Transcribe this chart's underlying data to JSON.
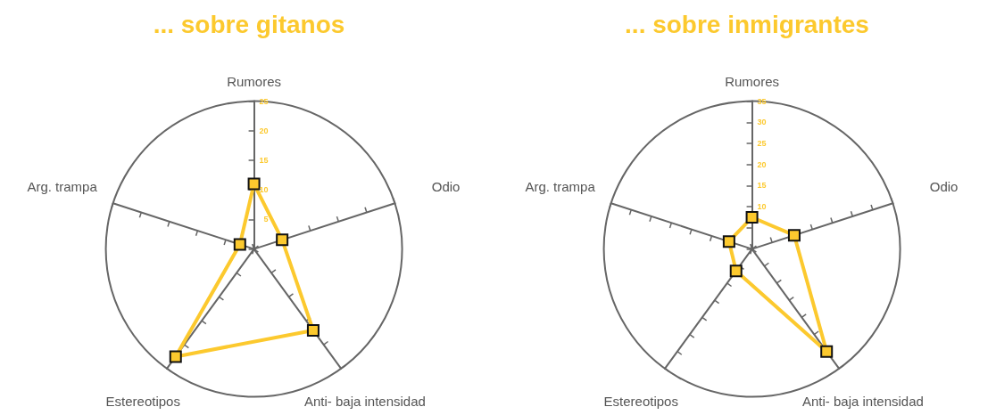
{
  "chart_data": [
    {
      "type": "radar",
      "title": "... sobre gitanos",
      "categories": [
        "Rumores",
        "Odio",
        "Anti- baja intensidad",
        "Estereotipos",
        "Arg. trampa"
      ],
      "ylim": [
        0,
        25
      ],
      "yticks": [
        5,
        10,
        15,
        20,
        25
      ],
      "marker": "square",
      "series": [
        {
          "color": "#fcc92e",
          "values": [
            11,
            5,
            17,
            22.5,
            2.5
          ]
        }
      ]
    },
    {
      "type": "radar",
      "title": "... sobre inmigrantes",
      "categories": [
        "Rumores",
        "Odio",
        "Anti- baja intensidad",
        "Estereotipos",
        "Arg. trampa"
      ],
      "ylim": [
        0,
        35
      ],
      "yticks": [
        10,
        15,
        20,
        25,
        30,
        35
      ],
      "marker": "square",
      "series": [
        {
          "color": "#fcc92e",
          "values": [
            7.5,
            10.5,
            30,
            6.4,
            5.7
          ]
        }
      ]
    }
  ]
}
